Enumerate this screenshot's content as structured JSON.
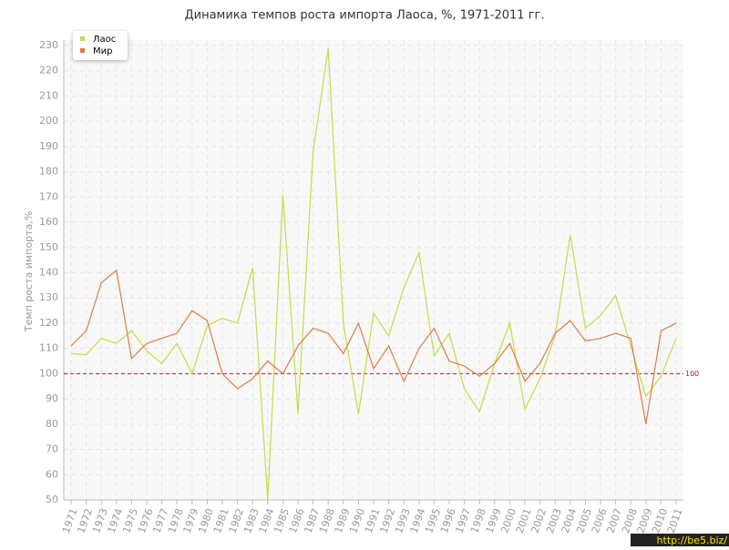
{
  "chart_data": {
    "type": "line",
    "title": "Динамика темпов роста импорта Лаоса, %, 1971-2011 гг.",
    "y_label": "Темп роста импорта,%",
    "categories": [
      "1971",
      "1972",
      "1973",
      "1974",
      "1975",
      "1976",
      "1977",
      "1978",
      "1979",
      "1980",
      "1981",
      "1982",
      "1983",
      "1984",
      "1985",
      "1986",
      "1987",
      "1988",
      "1989",
      "1990",
      "1991",
      "1992",
      "1993",
      "1994",
      "1995",
      "1996",
      "1997",
      "1998",
      "1999",
      "2000",
      "2001",
      "2002",
      "2003",
      "2004",
      "2005",
      "2006",
      "2007",
      "2008",
      "2009",
      "2010",
      "2011"
    ],
    "series": [
      {
        "name": "Лаос",
        "color": "#c5dc4a",
        "values": [
          108,
          107.5,
          114,
          112,
          117,
          109,
          104,
          112,
          100,
          119,
          122,
          120,
          142,
          50,
          171,
          84,
          188,
          229,
          120,
          84,
          124,
          115,
          134,
          148,
          107,
          116,
          94,
          85,
          104,
          120,
          86,
          98,
          115,
          155,
          118,
          123,
          131,
          111,
          91,
          99,
          114
        ]
      },
      {
        "name": "Мир",
        "color": "#e07a45",
        "values": [
          111,
          117,
          136,
          141,
          106,
          112,
          114,
          116,
          125,
          121,
          100,
          94,
          98,
          105,
          100,
          111,
          118,
          116,
          108,
          120,
          102,
          111,
          97,
          110,
          118,
          105,
          103,
          99,
          104,
          112,
          97,
          104,
          116,
          121,
          113,
          114,
          116,
          114,
          80,
          117,
          120
        ]
      }
    ],
    "ylim": [
      50,
      230
    ],
    "yticks": [
      50,
      60,
      70,
      80,
      90,
      100,
      110,
      120,
      130,
      140,
      150,
      160,
      170,
      180,
      190,
      200,
      210,
      220,
      230
    ],
    "grid": true,
    "legend": "top-left",
    "hline": 100,
    "hline_color": "#a02030",
    "watermark": "http://be5.biz/"
  }
}
